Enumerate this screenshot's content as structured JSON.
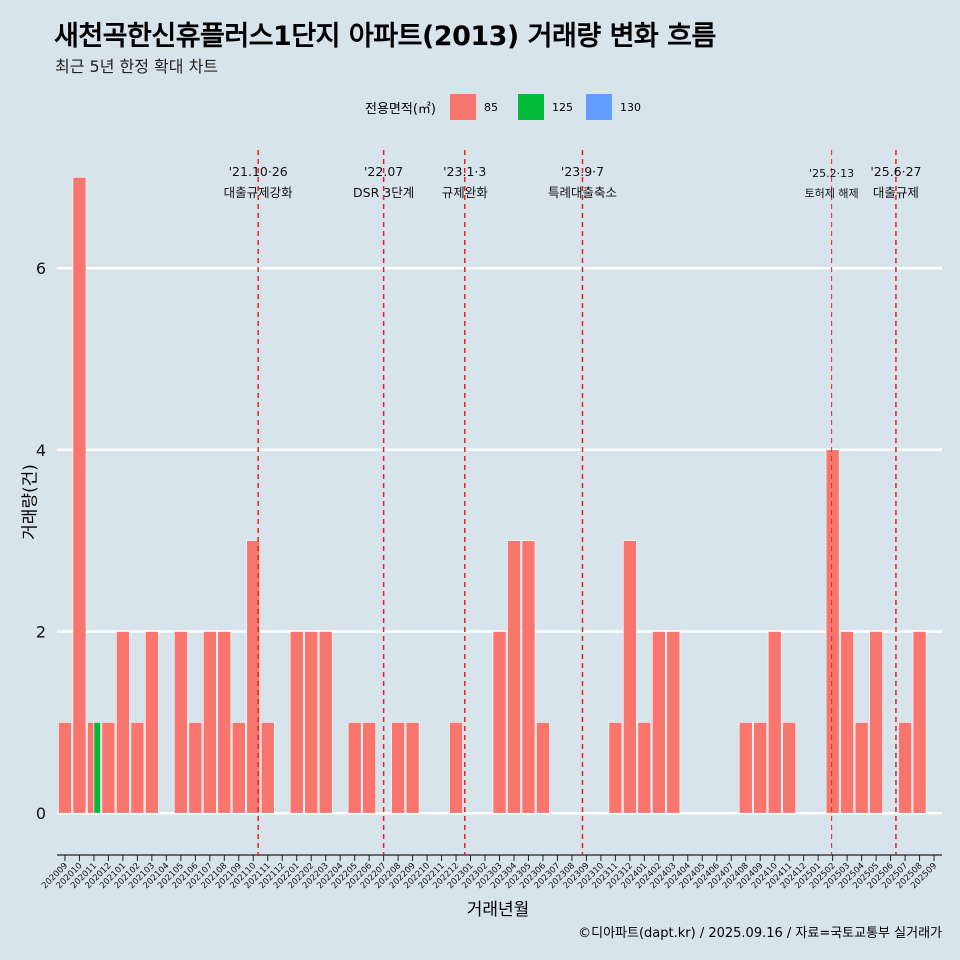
{
  "header": {
    "title": "새천곡한신휴플러스1단지 아파트(2013) 거래량 변화 흐름",
    "subtitle": "최근 5년 한정 확대 차트"
  },
  "legend": {
    "title": "전용면적(㎡)",
    "items": [
      {
        "label": "85",
        "color": "#f8766d"
      },
      {
        "label": "125",
        "color": "#00ba38"
      },
      {
        "label": "130",
        "color": "#619cff"
      }
    ]
  },
  "caption": "©디아파트(dapt.kr) / 2025.09.16 / 자료=국토교통부 실거래가",
  "chart_data": {
    "type": "bar",
    "title": "새천곡한신휴플러스1단지 아파트(2013) 거래량 변화 흐름",
    "subtitle": "최근 5년 한정 확대 차트",
    "xlabel": "거래년월",
    "ylabel": "거래량(건)",
    "ylim": [
      -0.35,
      7.3
    ],
    "yticks": [
      0,
      2,
      4,
      6
    ],
    "grid": true,
    "legend_position": "top",
    "categories": [
      "202009",
      "202010",
      "202011",
      "202012",
      "202101",
      "202102",
      "202103",
      "202104",
      "202105",
      "202106",
      "202107",
      "202108",
      "202109",
      "202110",
      "202111",
      "202112",
      "202201",
      "202202",
      "202203",
      "202204",
      "202205",
      "202206",
      "202207",
      "202208",
      "202209",
      "202210",
      "202211",
      "202212",
      "202301",
      "202302",
      "202303",
      "202304",
      "202305",
      "202306",
      "202307",
      "202308",
      "202309",
      "202310",
      "202311",
      "202312",
      "202401",
      "202402",
      "202403",
      "202404",
      "202405",
      "202406",
      "202407",
      "202408",
      "202409",
      "202410",
      "202411",
      "202412",
      "202501",
      "202502",
      "202503",
      "202504",
      "202505",
      "202506",
      "202507",
      "202508",
      "202509"
    ],
    "series": [
      {
        "name": "85",
        "color": "#f8766d",
        "values": [
          1,
          7,
          1,
          1,
          2,
          1,
          2,
          0,
          2,
          1,
          2,
          2,
          1,
          3,
          1,
          0,
          2,
          2,
          2,
          0,
          1,
          1,
          0,
          1,
          1,
          0,
          0,
          1,
          0,
          0,
          2,
          3,
          3,
          1,
          0,
          0,
          0,
          0,
          1,
          3,
          1,
          2,
          2,
          0,
          0,
          0,
          0,
          1,
          1,
          2,
          1,
          0,
          0,
          4,
          2,
          1,
          2,
          0,
          1,
          2,
          0
        ]
      },
      {
        "name": "125",
        "color": "#00ba38",
        "values": [
          0,
          0,
          1,
          0,
          0,
          0,
          0,
          0,
          0,
          0,
          0,
          0,
          0,
          0,
          0,
          0,
          0,
          0,
          0,
          0,
          0,
          0,
          0,
          0,
          0,
          0,
          0,
          0,
          0,
          0,
          0,
          0,
          0,
          0,
          0,
          0,
          0,
          0,
          0,
          0,
          0,
          0,
          0,
          0,
          0,
          0,
          0,
          0,
          0,
          0,
          0,
          0,
          0,
          0,
          0,
          0,
          0,
          0,
          0,
          0,
          0
        ]
      },
      {
        "name": "130",
        "color": "#619cff",
        "values": [
          0,
          0,
          0,
          0,
          0,
          0,
          0,
          0,
          0,
          0,
          0,
          0,
          0,
          0,
          0,
          0,
          0,
          0,
          0,
          0,
          0,
          0,
          0,
          0,
          0,
          0,
          0,
          0,
          0,
          0,
          0,
          0,
          0,
          0,
          0,
          0,
          0,
          0,
          0,
          0,
          0,
          0,
          0,
          0,
          0,
          0,
          0,
          0,
          0,
          0,
          0,
          0,
          0,
          0,
          0,
          0,
          0,
          0,
          0,
          0,
          0
        ]
      }
    ],
    "annotations": [
      {
        "date": "'21.10·26",
        "label": "대출규제강화",
        "x_month": "202110",
        "month_fraction": 0.84,
        "line_width": 1.5
      },
      {
        "date": "'22.07",
        "label": "DSR 3단계",
        "x_month": "202207",
        "month_fraction": 0.5,
        "line_width": 1.5
      },
      {
        "date": "'23.1·3",
        "label": "규제완화",
        "x_month": "202301",
        "month_fraction": 0.1,
        "line_width": 1.5
      },
      {
        "date": "'23.9·7",
        "label": "특례대출축소",
        "x_month": "202309",
        "month_fraction": 0.23,
        "line_width": 1.5
      },
      {
        "date": "'25.2·13",
        "label": "토허제 해제",
        "x_month": "202502",
        "month_fraction": 0.43,
        "line_width": 1.0,
        "small": true
      },
      {
        "date": "'25.6·27",
        "label": "대출규제",
        "x_month": "202506",
        "month_fraction": 0.87,
        "line_width": 1.5
      }
    ],
    "annotation_color": "#e8211d"
  }
}
